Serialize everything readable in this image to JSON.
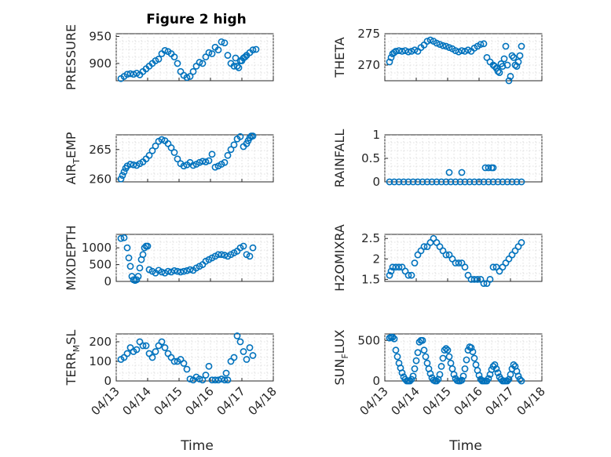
{
  "figure": {
    "title": "Figure 2 high",
    "marker_color": "#0072BD",
    "xlabel": "Time"
  },
  "chart_data": [
    {
      "type": "scatter",
      "ylabel": "PRESSURE",
      "ylim": [
        868,
        955
      ],
      "yticks": [
        900,
        950
      ],
      "xlim": [
        0,
        5
      ],
      "grid": true,
      "x": [
        0.15,
        0.25,
        0.35,
        0.45,
        0.55,
        0.65,
        0.75,
        0.85,
        0.95,
        1.05,
        1.15,
        1.25,
        1.35,
        1.45,
        1.55,
        1.65,
        1.75,
        1.85,
        1.95,
        2.05,
        2.15,
        2.25,
        2.35,
        2.45,
        2.55,
        2.65,
        2.75,
        2.85,
        2.95,
        3.05,
        3.15,
        3.25,
        3.35,
        3.45,
        3.55,
        3.65,
        3.75,
        3.8,
        3.85,
        3.9,
        3.95,
        4.0,
        4.05,
        4.1,
        4.15,
        4.25,
        4.35,
        4.45
      ],
      "y": [
        872,
        876,
        880,
        881,
        880,
        882,
        879,
        885,
        890,
        895,
        900,
        905,
        908,
        918,
        924,
        922,
        918,
        912,
        900,
        885,
        878,
        874,
        876,
        885,
        895,
        902,
        900,
        912,
        920,
        918,
        930,
        925,
        940,
        938,
        915,
        900,
        895,
        910,
        895,
        892,
        905,
        905,
        910,
        912,
        915,
        920,
        925,
        926
      ]
    },
    {
      "type": "scatter",
      "ylabel": "THETA",
      "ylim": [
        267.5,
        275
      ],
      "yticks": [
        270,
        275
      ],
      "xlim": [
        0,
        5
      ],
      "grid": true,
      "x": [
        0.15,
        0.2,
        0.25,
        0.3,
        0.35,
        0.45,
        0.55,
        0.65,
        0.75,
        0.85,
        0.95,
        1.05,
        1.15,
        1.25,
        1.35,
        1.45,
        1.55,
        1.65,
        1.75,
        1.85,
        1.95,
        2.05,
        2.15,
        2.25,
        2.35,
        2.45,
        2.55,
        2.65,
        2.75,
        2.85,
        2.95,
        3.05,
        3.15,
        3.25,
        3.35,
        3.45,
        3.5,
        3.55,
        3.6,
        3.65,
        3.7,
        3.75,
        3.8,
        3.85,
        3.9,
        3.95,
        4.0,
        4.05,
        4.1,
        4.15,
        4.2,
        4.25,
        4.3,
        4.35
      ],
      "y": [
        270.5,
        271.2,
        271.8,
        272.0,
        272.2,
        272.3,
        272.2,
        272.3,
        272.1,
        272.2,
        272.4,
        272.2,
        272.8,
        273.2,
        273.8,
        274.0,
        273.8,
        273.5,
        273.3,
        273.1,
        273.0,
        272.8,
        272.6,
        272.3,
        272.1,
        272.3,
        272.2,
        272.4,
        272.2,
        272.7,
        273.0,
        273.3,
        273.4,
        271.2,
        270.5,
        270.0,
        269.8,
        269.5,
        269.0,
        268.8,
        270.2,
        269.8,
        271.0,
        273.0,
        270.0,
        267.5,
        268.2,
        271.5,
        271.2,
        270.0,
        269.8,
        270.5,
        271.5,
        273.0
      ]
    },
    {
      "type": "scatter",
      "ylabel": "AIR_TEMP",
      "ylim": [
        259.5,
        267.5
      ],
      "yticks": [
        260,
        265
      ],
      "xlim": [
        0,
        5
      ],
      "grid": true,
      "x": [
        0.15,
        0.2,
        0.25,
        0.3,
        0.35,
        0.45,
        0.55,
        0.65,
        0.75,
        0.85,
        0.95,
        1.05,
        1.15,
        1.25,
        1.35,
        1.45,
        1.55,
        1.65,
        1.75,
        1.85,
        1.95,
        2.05,
        2.15,
        2.25,
        2.35,
        2.45,
        2.55,
        2.65,
        2.75,
        2.85,
        2.95,
        3.05,
        3.15,
        3.25,
        3.35,
        3.45,
        3.55,
        3.65,
        3.75,
        3.85,
        3.95,
        4.05,
        4.15,
        4.2,
        4.25,
        4.3,
        4.35
      ],
      "y": [
        260.0,
        260.6,
        261.2,
        261.8,
        262.2,
        262.5,
        262.4,
        262.3,
        262.6,
        262.9,
        263.4,
        264.0,
        264.8,
        265.6,
        266.4,
        266.7,
        266.5,
        266.0,
        265.3,
        264.5,
        263.4,
        262.6,
        262.2,
        262.4,
        262.8,
        262.3,
        262.5,
        262.8,
        263.0,
        262.9,
        263.1,
        264.2,
        262.0,
        262.2,
        262.5,
        262.8,
        264.0,
        265.0,
        265.8,
        266.8,
        267.2,
        265.5,
        266.0,
        266.5,
        267.0,
        267.3,
        267.3
      ]
    },
    {
      "type": "scatter",
      "ylabel": "RAINFALL",
      "ylim": [
        0,
        1
      ],
      "yticks": [
        0,
        0.5,
        1
      ],
      "xlim": [
        0,
        5
      ],
      "grid": true,
      "x": [
        0.15,
        0.3,
        0.45,
        0.6,
        0.75,
        0.9,
        1.05,
        1.2,
        1.35,
        1.5,
        1.65,
        1.8,
        1.95,
        2.1,
        2.25,
        2.4,
        2.55,
        2.7,
        2.85,
        3.0,
        3.15,
        3.3,
        3.45,
        3.6,
        3.75,
        3.9,
        4.05,
        4.2,
        4.35,
        2.05,
        2.45,
        3.2,
        3.3,
        3.4,
        3.45
      ],
      "y": [
        0,
        0,
        0,
        0,
        0,
        0,
        0,
        0,
        0,
        0,
        0,
        0,
        0,
        0,
        0,
        0,
        0,
        0,
        0,
        0,
        0,
        0,
        0,
        0,
        0,
        0,
        0,
        0,
        0,
        0.2,
        0.2,
        0.3,
        0.3,
        0.3,
        0.3
      ]
    },
    {
      "type": "scatter",
      "ylabel": "MIXDEPTH",
      "ylim": [
        0,
        1400
      ],
      "yticks": [
        0,
        500,
        1000
      ],
      "xlim": [
        0,
        5
      ],
      "grid": true,
      "x": [
        0.15,
        0.25,
        0.35,
        0.4,
        0.45,
        0.5,
        0.55,
        0.6,
        0.65,
        0.7,
        0.75,
        0.8,
        0.85,
        0.9,
        0.95,
        1.0,
        1.05,
        1.15,
        1.25,
        1.35,
        1.45,
        1.55,
        1.65,
        1.75,
        1.85,
        1.95,
        2.05,
        2.15,
        2.25,
        2.35,
        2.45,
        2.55,
        2.65,
        2.75,
        2.85,
        2.95,
        3.05,
        3.15,
        3.25,
        3.35,
        3.45,
        3.55,
        3.65,
        3.75,
        3.85,
        3.95,
        4.05,
        4.15,
        4.25,
        4.35
      ],
      "y": [
        1280,
        1300,
        1000,
        700,
        450,
        150,
        50,
        30,
        50,
        150,
        400,
        650,
        800,
        1000,
        1050,
        1050,
        350,
        300,
        250,
        330,
        280,
        250,
        300,
        280,
        320,
        300,
        280,
        300,
        320,
        350,
        330,
        400,
        450,
        500,
        600,
        650,
        700,
        750,
        800,
        800,
        780,
        750,
        800,
        850,
        900,
        1000,
        1050,
        800,
        750,
        1000
      ]
    },
    {
      "type": "scatter",
      "ylabel": "H2OMIXRA",
      "ylim": [
        1.45,
        2.6
      ],
      "yticks": [
        1.5,
        2,
        2.5
      ],
      "xlim": [
        0,
        5
      ],
      "grid": true,
      "x": [
        0.15,
        0.2,
        0.25,
        0.35,
        0.45,
        0.55,
        0.65,
        0.75,
        0.85,
        0.95,
        1.05,
        1.15,
        1.25,
        1.35,
        1.45,
        1.55,
        1.65,
        1.75,
        1.85,
        1.95,
        2.05,
        2.15,
        2.25,
        2.35,
        2.45,
        2.55,
        2.65,
        2.75,
        2.85,
        2.95,
        3.05,
        3.15,
        3.25,
        3.35,
        3.45,
        3.55,
        3.65,
        3.75,
        3.85,
        3.95,
        4.05,
        4.15,
        4.25,
        4.35
      ],
      "y": [
        1.6,
        1.7,
        1.8,
        1.8,
        1.8,
        1.8,
        1.7,
        1.6,
        1.6,
        1.9,
        2.1,
        2.2,
        2.3,
        2.3,
        2.4,
        2.5,
        2.4,
        2.3,
        2.2,
        2.1,
        2.1,
        2.0,
        1.9,
        1.9,
        1.9,
        1.8,
        1.6,
        1.5,
        1.5,
        1.5,
        1.5,
        1.4,
        1.4,
        1.5,
        1.8,
        1.8,
        1.7,
        1.8,
        1.9,
        2.0,
        2.1,
        2.2,
        2.3,
        2.4
      ]
    },
    {
      "type": "scatter",
      "ylabel": "TERR_MSL",
      "ylim": [
        0,
        240
      ],
      "yticks": [
        0,
        100,
        200
      ],
      "xlim": [
        0,
        5
      ],
      "grid": true,
      "x": [
        0.15,
        0.25,
        0.35,
        0.45,
        0.55,
        0.65,
        0.75,
        0.85,
        0.95,
        1.05,
        1.15,
        1.25,
        1.35,
        1.45,
        1.55,
        1.65,
        1.75,
        1.85,
        1.95,
        2.05,
        2.15,
        2.25,
        2.35,
        2.45,
        2.55,
        2.65,
        2.75,
        2.85,
        2.95,
        3.05,
        3.15,
        3.25,
        3.35,
        3.45,
        3.5,
        3.55,
        3.65,
        3.75,
        3.85,
        3.95,
        4.05,
        4.15,
        4.25,
        4.35
      ],
      "y": [
        110,
        120,
        140,
        170,
        150,
        160,
        200,
        180,
        180,
        140,
        120,
        150,
        180,
        200,
        170,
        140,
        120,
        100,
        100,
        110,
        90,
        60,
        10,
        5,
        20,
        10,
        5,
        30,
        75,
        5,
        5,
        5,
        10,
        5,
        40,
        5,
        100,
        120,
        230,
        200,
        150,
        110,
        170,
        130
      ]
    },
    {
      "type": "scatter",
      "ylabel": "SUN_FLUX",
      "ylim": [
        0,
        580
      ],
      "yticks": [
        0,
        500
      ],
      "xlim": [
        0,
        5
      ],
      "grid": true,
      "x": [
        0.15,
        0.2,
        0.25,
        0.3,
        0.35,
        0.4,
        0.45,
        0.5,
        0.55,
        0.6,
        0.65,
        0.7,
        0.75,
        0.8,
        0.85,
        0.9,
        0.95,
        1.0,
        1.05,
        1.1,
        1.15,
        1.2,
        1.25,
        1.3,
        1.35,
        1.4,
        1.45,
        1.5,
        1.55,
        1.6,
        1.65,
        1.7,
        1.75,
        1.8,
        1.85,
        1.9,
        1.95,
        2.0,
        2.05,
        2.1,
        2.15,
        2.2,
        2.25,
        2.3,
        2.35,
        2.4,
        2.45,
        2.5,
        2.55,
        2.6,
        2.65,
        2.7,
        2.75,
        2.8,
        2.85,
        2.9,
        2.95,
        3.0,
        3.05,
        3.1,
        3.15,
        3.2,
        3.25,
        3.3,
        3.35,
        3.4,
        3.45,
        3.5,
        3.55,
        3.6,
        3.65,
        3.7,
        3.75,
        3.8,
        3.85,
        3.9,
        3.95,
        4.0,
        4.05,
        4.1,
        4.15,
        4.2,
        4.25,
        4.3,
        4.35
      ],
      "y": [
        530,
        540,
        540,
        520,
        380,
        300,
        220,
        160,
        100,
        50,
        20,
        0,
        0,
        0,
        20,
        60,
        150,
        250,
        350,
        480,
        500,
        500,
        380,
        300,
        220,
        150,
        90,
        40,
        10,
        0,
        0,
        20,
        80,
        180,
        280,
        380,
        400,
        380,
        300,
        220,
        150,
        80,
        30,
        5,
        0,
        0,
        10,
        60,
        150,
        260,
        380,
        420,
        410,
        360,
        280,
        200,
        130,
        70,
        20,
        0,
        0,
        0,
        0,
        30,
        80,
        140,
        180,
        200,
        150,
        100,
        50,
        20,
        0,
        0,
        0,
        0,
        20,
        80,
        150,
        200,
        180,
        120,
        60,
        20,
        0
      ]
    }
  ],
  "xticks": [
    "04/13",
    "04/14",
    "04/15",
    "04/16",
    "04/17",
    "04/18"
  ]
}
